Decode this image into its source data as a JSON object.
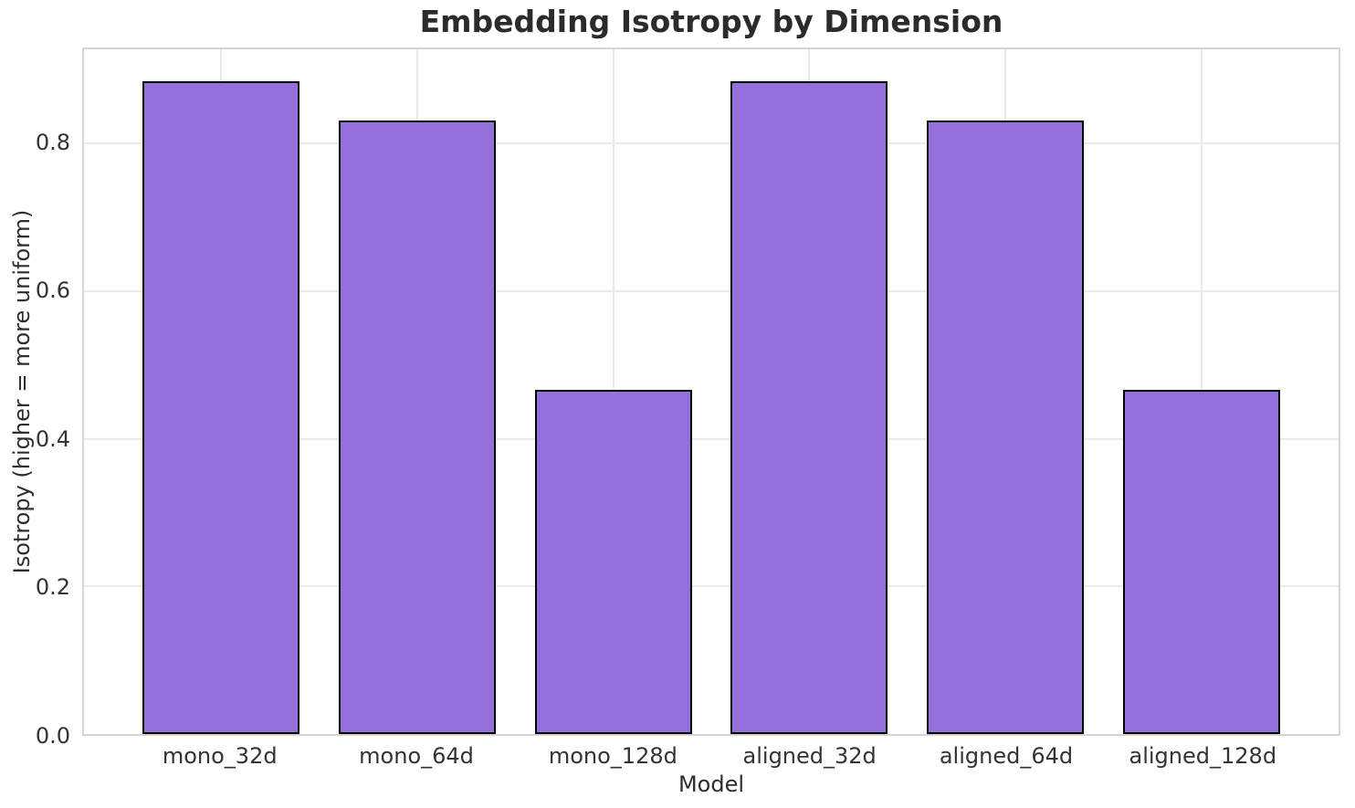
{
  "chart_data": {
    "type": "bar",
    "title": "Embedding Isotropy by Dimension",
    "xlabel": "Model",
    "ylabel": "Isotropy (higher = more uniform)",
    "categories": [
      "mono_32d",
      "mono_64d",
      "mono_128d",
      "aligned_32d",
      "aligned_64d",
      "aligned_128d"
    ],
    "values": [
      0.885,
      0.832,
      0.466,
      0.885,
      0.832,
      0.466
    ],
    "ylim": [
      0,
      0.928
    ],
    "xlim": [
      -0.7,
      5.7
    ],
    "yticks": [
      0.0,
      0.2,
      0.4,
      0.6,
      0.8
    ],
    "ytick_labels": [
      "0.0",
      "0.2",
      "0.4",
      "0.6",
      "0.8"
    ],
    "bar_width": 0.8,
    "grid": true,
    "legend_position": "none",
    "colors": {
      "bar_fill": "#9370DB",
      "bar_edge": "#000000",
      "grid": "#eaeaea",
      "spine": "#d5d5d5",
      "text": "#2e2e2e",
      "tick_text": "#333333",
      "title_text": "#2b2b2b"
    }
  }
}
